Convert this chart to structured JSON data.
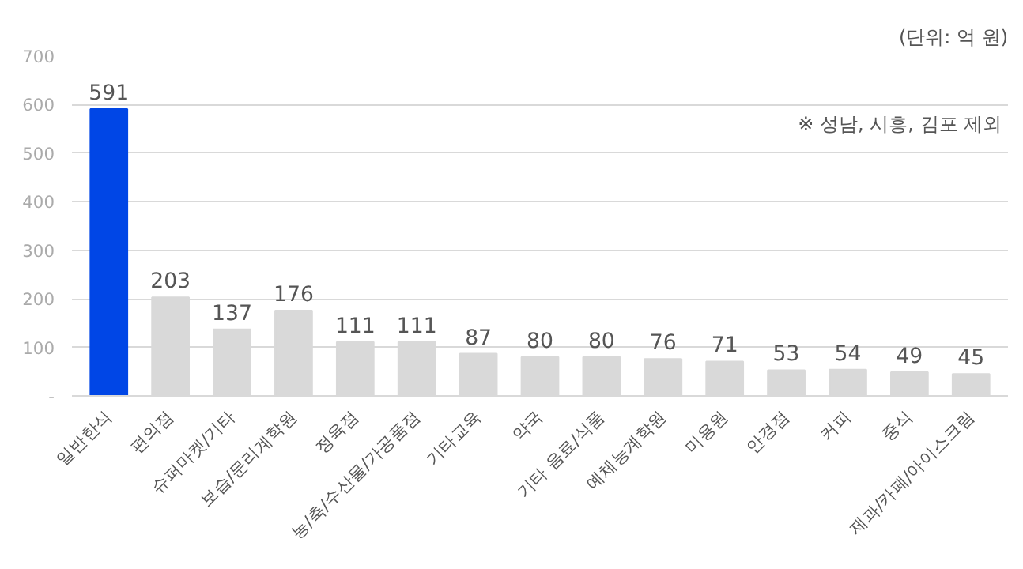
{
  "chart_data": {
    "type": "bar",
    "categories": [
      "일반한식",
      "편의점",
      "슈퍼마켓/기타",
      "보습/문리계학원",
      "정육점",
      "농/축/수산물/가공품점",
      "기타교육",
      "약국",
      "기타 음료/식품",
      "예체능계학원",
      "미용원",
      "안경점",
      "커피",
      "중식",
      "제과/카페/아이스크림"
    ],
    "values": [
      591,
      203,
      137,
      176,
      111,
      111,
      87,
      80,
      80,
      76,
      71,
      53,
      54,
      49,
      45
    ],
    "colors": [
      "#0046e6",
      "#d9d9d9",
      "#d9d9d9",
      "#d9d9d9",
      "#d9d9d9",
      "#d9d9d9",
      "#d9d9d9",
      "#d9d9d9",
      "#d9d9d9",
      "#d9d9d9",
      "#d9d9d9",
      "#d9d9d9",
      "#d9d9d9",
      "#d9d9d9",
      "#d9d9d9"
    ],
    "data_labels": true,
    "ylim": [
      0,
      700
    ],
    "yticks": [
      {
        "value": 0,
        "label": "-"
      },
      100,
      200,
      300,
      400,
      500,
      600,
      700
    ],
    "grid": "y",
    "annotations": [
      "(단위: 억 원)",
      "※ 성남, 시흥, 김포 제외"
    ]
  }
}
